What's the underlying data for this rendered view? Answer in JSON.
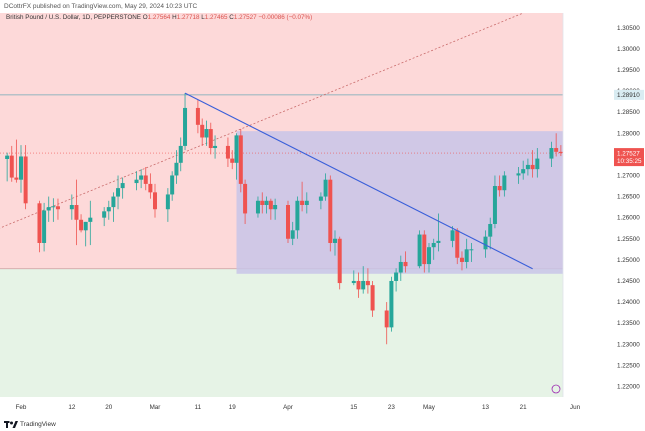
{
  "header": {
    "publisher_text": "DCottrFX published on TradingView.com, May 29, 2024 10:23 UTC"
  },
  "legend": {
    "symbol": "British Pound / U.S. Dollar, 1D, PEPPERSTONE",
    "o_label": "O",
    "o_value": "1.27564",
    "h_label": "H",
    "h_value": "1.27718",
    "l_label": "L",
    "l_value": "1.27465",
    "c_label": "C",
    "c_value": "1.27527",
    "change": "−0.00086 (−0.07%)"
  },
  "footer": {
    "brand": "TradingView"
  },
  "colors": {
    "up": "#26a69a",
    "down": "#ef5350",
    "upper_zone": "#fdd9d9",
    "lower_zone": "#e6f3e6",
    "box": "#c8c4e8",
    "trendline": "#3a5fd9",
    "dotted_line": "#c96b6b",
    "hline": "#6fa9b8",
    "last_price_bg": "#ef5350",
    "hline_label_bg": "#d9ecf2"
  },
  "chart_data": {
    "type": "candlestick",
    "y_range": [
      1.2175,
      1.3085
    ],
    "y_ticks": [
      "1.30500",
      "1.30000",
      "1.29500",
      "1.29000",
      "1.28500",
      "1.28000",
      "1.27500",
      "1.27000",
      "1.26500",
      "1.26000",
      "1.25500",
      "1.25000",
      "1.24500",
      "1.24000",
      "1.23500",
      "1.23000",
      "1.22500",
      "1.22000"
    ],
    "x_ticks": [
      "Feb",
      "12",
      "20",
      "Mar",
      "11",
      "19",
      "Apr",
      "15",
      "23",
      "May",
      "13",
      "21",
      "Jun"
    ],
    "last_price_label": "1.27527",
    "countdown_label": "10:35:25",
    "hline_label": "1.28910",
    "hline_value": 1.2891,
    "zone_boundary": 1.2479,
    "box": {
      "top": 1.2805,
      "bottom": 1.2467,
      "start": "Mar 20",
      "end": "May 29"
    },
    "trendline": {
      "start": [
        "Mar 8",
        1.2895
      ],
      "end": [
        "May 23",
        1.2479
      ]
    },
    "dotted_line": {
      "start": [
        "Jan 25",
        1.2571
      ],
      "end": [
        "May 21",
        1.3085
      ]
    },
    "candles": [
      {
        "d": "Jan 24",
        "o": 1.2731,
        "h": 1.2777,
        "l": 1.2715,
        "c": 1.2726
      },
      {
        "d": "Jan 25",
        "o": 1.2726,
        "h": 1.2752,
        "l": 1.2671,
        "c": 1.2708
      },
      {
        "d": "Jan 26",
        "o": 1.2708,
        "h": 1.2745,
        "l": 1.2698,
        "c": 1.2739
      },
      {
        "d": "Jan 29",
        "o": 1.2739,
        "h": 1.2754,
        "l": 1.2686,
        "c": 1.2747
      },
      {
        "d": "Jan 30",
        "o": 1.2747,
        "h": 1.277,
        "l": 1.2685,
        "c": 1.2695
      },
      {
        "d": "Jan 31",
        "o": 1.2695,
        "h": 1.2785,
        "l": 1.2683,
        "c": 1.269
      },
      {
        "d": "Feb 1",
        "o": 1.269,
        "h": 1.2772,
        "l": 1.2659,
        "c": 1.2745
      },
      {
        "d": "Feb 2",
        "o": 1.2745,
        "h": 1.2772,
        "l": 1.262,
        "c": 1.2634
      },
      {
        "d": "Feb 5",
        "o": 1.2634,
        "h": 1.264,
        "l": 1.2518,
        "c": 1.254
      },
      {
        "d": "Feb 6",
        "o": 1.254,
        "h": 1.2635,
        "l": 1.252,
        "c": 1.2617
      },
      {
        "d": "Feb 7",
        "o": 1.2617,
        "h": 1.265,
        "l": 1.259,
        "c": 1.2625
      },
      {
        "d": "Feb 8",
        "o": 1.2625,
        "h": 1.2646,
        "l": 1.259,
        "c": 1.2627
      },
      {
        "d": "Feb 9",
        "o": 1.2627,
        "h": 1.2645,
        "l": 1.2595,
        "c": 1.262
      },
      {
        "d": "Feb 12",
        "o": 1.262,
        "h": 1.2655,
        "l": 1.2595,
        "c": 1.263
      },
      {
        "d": "Feb 13",
        "o": 1.263,
        "h": 1.269,
        "l": 1.2535,
        "c": 1.2595
      },
      {
        "d": "Feb 14",
        "o": 1.2595,
        "h": 1.2608,
        "l": 1.2565,
        "c": 1.257
      },
      {
        "d": "Feb 15",
        "o": 1.257,
        "h": 1.259,
        "l": 1.2532,
        "c": 1.259
      },
      {
        "d": "Feb 16",
        "o": 1.259,
        "h": 1.264,
        "l": 1.2535,
        "c": 1.26
      },
      {
        "d": "Feb 19",
        "o": 1.26,
        "h": 1.2625,
        "l": 1.258,
        "c": 1.2615
      },
      {
        "d": "Feb 20",
        "o": 1.2615,
        "h": 1.264,
        "l": 1.2595,
        "c": 1.2625
      },
      {
        "d": "Feb 21",
        "o": 1.2625,
        "h": 1.266,
        "l": 1.259,
        "c": 1.265
      },
      {
        "d": "Feb 22",
        "o": 1.265,
        "h": 1.27,
        "l": 1.262,
        "c": 1.267
      },
      {
        "d": "Feb 23",
        "o": 1.267,
        "h": 1.2695,
        "l": 1.2645,
        "c": 1.2682
      },
      {
        "d": "Feb 26",
        "o": 1.2682,
        "h": 1.271,
        "l": 1.2665,
        "c": 1.269
      },
      {
        "d": "Feb 27",
        "o": 1.269,
        "h": 1.2715,
        "l": 1.267,
        "c": 1.27
      },
      {
        "d": "Feb 28",
        "o": 1.27,
        "h": 1.272,
        "l": 1.2665,
        "c": 1.268
      },
      {
        "d": "Feb 29",
        "o": 1.268,
        "h": 1.2705,
        "l": 1.2645,
        "c": 1.266
      },
      {
        "d": "Mar 1",
        "o": 1.266,
        "h": 1.268,
        "l": 1.26,
        "c": 1.262
      },
      {
        "d": "Mar 4",
        "o": 1.262,
        "h": 1.267,
        "l": 1.259,
        "c": 1.2655
      },
      {
        "d": "Mar 5",
        "o": 1.2655,
        "h": 1.271,
        "l": 1.264,
        "c": 1.27
      },
      {
        "d": "Mar 6",
        "o": 1.27,
        "h": 1.276,
        "l": 1.268,
        "c": 1.273
      },
      {
        "d": "Mar 7",
        "o": 1.273,
        "h": 1.279,
        "l": 1.271,
        "c": 1.277
      },
      {
        "d": "Mar 8",
        "o": 1.277,
        "h": 1.2895,
        "l": 1.276,
        "c": 1.286
      },
      {
        "d": "Mar 11",
        "o": 1.286,
        "h": 1.288,
        "l": 1.28,
        "c": 1.282
      },
      {
        "d": "Mar 12",
        "o": 1.282,
        "h": 1.2835,
        "l": 1.277,
        "c": 1.279
      },
      {
        "d": "Mar 13",
        "o": 1.279,
        "h": 1.283,
        "l": 1.277,
        "c": 1.281
      },
      {
        "d": "Mar 14",
        "o": 1.281,
        "h": 1.2825,
        "l": 1.275,
        "c": 1.2765
      },
      {
        "d": "Mar 15",
        "o": 1.2765,
        "h": 1.2795,
        "l": 1.274,
        "c": 1.277
      },
      {
        "d": "Mar 18",
        "o": 1.277,
        "h": 1.279,
        "l": 1.272,
        "c": 1.274
      },
      {
        "d": "Mar 19",
        "o": 1.274,
        "h": 1.276,
        "l": 1.2715,
        "c": 1.273
      },
      {
        "d": "Mar 20",
        "o": 1.273,
        "h": 1.28,
        "l": 1.269,
        "c": 1.2795
      },
      {
        "d": "Mar 21",
        "o": 1.2795,
        "h": 1.281,
        "l": 1.266,
        "c": 1.268
      },
      {
        "d": "Mar 22",
        "o": 1.268,
        "h": 1.269,
        "l": 1.2585,
        "c": 1.261
      },
      {
        "d": "Mar 25",
        "o": 1.261,
        "h": 1.265,
        "l": 1.26,
        "c": 1.264
      },
      {
        "d": "Mar 26",
        "o": 1.264,
        "h": 1.266,
        "l": 1.261,
        "c": 1.263
      },
      {
        "d": "Mar 27",
        "o": 1.263,
        "h": 1.265,
        "l": 1.261,
        "c": 1.264
      },
      {
        "d": "Mar 28",
        "o": 1.264,
        "h": 1.2645,
        "l": 1.2595,
        "c": 1.262
      },
      {
        "d": "Mar 29",
        "o": 1.262,
        "h": 1.2645,
        "l": 1.2595,
        "c": 1.263
      },
      {
        "d": "Apr 1",
        "o": 1.263,
        "h": 1.264,
        "l": 1.254,
        "c": 1.255
      },
      {
        "d": "Apr 2",
        "o": 1.255,
        "h": 1.259,
        "l": 1.2535,
        "c": 1.257
      },
      {
        "d": "Apr 3",
        "o": 1.257,
        "h": 1.265,
        "l": 1.255,
        "c": 1.264
      },
      {
        "d": "Apr 4",
        "o": 1.264,
        "h": 1.2685,
        "l": 1.2615,
        "c": 1.263
      },
      {
        "d": "Apr 5",
        "o": 1.263,
        "h": 1.266,
        "l": 1.261,
        "c": 1.264
      },
      {
        "d": "Apr 8",
        "o": 1.264,
        "h": 1.266,
        "l": 1.262,
        "c": 1.265
      },
      {
        "d": "Apr 9",
        "o": 1.265,
        "h": 1.2705,
        "l": 1.264,
        "c": 1.269
      },
      {
        "d": "Apr 10",
        "o": 1.269,
        "h": 1.27,
        "l": 1.252,
        "c": 1.254
      },
      {
        "d": "Apr 11",
        "o": 1.254,
        "h": 1.257,
        "l": 1.251,
        "c": 1.255
      },
      {
        "d": "Apr 12",
        "o": 1.255,
        "h": 1.2555,
        "l": 1.243,
        "c": 1.2445
      },
      {
        "d": "Apr 15",
        "o": 1.2445,
        "h": 1.2475,
        "l": 1.244,
        "c": 1.245
      },
      {
        "d": "Apr 16",
        "o": 1.245,
        "h": 1.247,
        "l": 1.241,
        "c": 1.243
      },
      {
        "d": "Apr 17",
        "o": 1.243,
        "h": 1.2485,
        "l": 1.242,
        "c": 1.245
      },
      {
        "d": "Apr 18",
        "o": 1.245,
        "h": 1.248,
        "l": 1.242,
        "c": 1.244
      },
      {
        "d": "Apr 19",
        "o": 1.244,
        "h": 1.245,
        "l": 1.2365,
        "c": 1.238
      },
      {
        "d": "Apr 22",
        "o": 1.238,
        "h": 1.24,
        "l": 1.23,
        "c": 1.234
      },
      {
        "d": "Apr 23",
        "o": 1.234,
        "h": 1.246,
        "l": 1.233,
        "c": 1.245
      },
      {
        "d": "Apr 24",
        "o": 1.245,
        "h": 1.248,
        "l": 1.2425,
        "c": 1.247
      },
      {
        "d": "Apr 25",
        "o": 1.247,
        "h": 1.251,
        "l": 1.245,
        "c": 1.2495
      },
      {
        "d": "Apr 26",
        "o": 1.2495,
        "h": 1.252,
        "l": 1.247,
        "c": 1.2485
      },
      {
        "d": "Apr 29",
        "o": 1.2485,
        "h": 1.257,
        "l": 1.248,
        "c": 1.256
      },
      {
        "d": "Apr 30",
        "o": 1.256,
        "h": 1.257,
        "l": 1.247,
        "c": 1.249
      },
      {
        "d": "May 1",
        "o": 1.249,
        "h": 1.254,
        "l": 1.247,
        "c": 1.253
      },
      {
        "d": "May 2",
        "o": 1.253,
        "h": 1.255,
        "l": 1.25,
        "c": 1.254
      },
      {
        "d": "May 3",
        "o": 1.254,
        "h": 1.261,
        "l": 1.252,
        "c": 1.2545
      },
      {
        "d": "May 6",
        "o": 1.2545,
        "h": 1.258,
        "l": 1.253,
        "c": 1.257
      },
      {
        "d": "May 7",
        "o": 1.257,
        "h": 1.2575,
        "l": 1.249,
        "c": 1.2505
      },
      {
        "d": "May 8",
        "o": 1.2505,
        "h": 1.252,
        "l": 1.2475,
        "c": 1.2495
      },
      {
        "d": "May 9",
        "o": 1.2495,
        "h": 1.255,
        "l": 1.248,
        "c": 1.2525
      },
      {
        "d": "May 10",
        "o": 1.2525,
        "h": 1.254,
        "l": 1.2495,
        "c": 1.2525
      },
      {
        "d": "May 13",
        "o": 1.2525,
        "h": 1.257,
        "l": 1.2505,
        "c": 1.2555
      },
      {
        "d": "May 14",
        "o": 1.2555,
        "h": 1.26,
        "l": 1.2525,
        "c": 1.2585
      },
      {
        "d": "May 15",
        "o": 1.2585,
        "h": 1.27,
        "l": 1.2575,
        "c": 1.2675
      },
      {
        "d": "May 16",
        "o": 1.2675,
        "h": 1.27,
        "l": 1.265,
        "c": 1.2665
      },
      {
        "d": "May 17",
        "o": 1.2665,
        "h": 1.271,
        "l": 1.265,
        "c": 1.27
      },
      {
        "d": "May 20",
        "o": 1.27,
        "h": 1.272,
        "l": 1.268,
        "c": 1.2705
      },
      {
        "d": "May 21",
        "o": 1.2705,
        "h": 1.2735,
        "l": 1.269,
        "c": 1.2715
      },
      {
        "d": "May 22",
        "o": 1.2715,
        "h": 1.274,
        "l": 1.27,
        "c": 1.2725
      },
      {
        "d": "May 23",
        "o": 1.2725,
        "h": 1.276,
        "l": 1.2695,
        "c": 1.2715
      },
      {
        "d": "May 24",
        "o": 1.2715,
        "h": 1.2765,
        "l": 1.2695,
        "c": 1.274
      },
      {
        "d": "May 27",
        "o": 1.274,
        "h": 1.278,
        "l": 1.272,
        "c": 1.2765
      },
      {
        "d": "May 28",
        "o": 1.2765,
        "h": 1.28,
        "l": 1.2745,
        "c": 1.2756
      },
      {
        "d": "May 29",
        "o": 1.2756,
        "h": 1.2772,
        "l": 1.2746,
        "c": 1.2753
      }
    ]
  }
}
